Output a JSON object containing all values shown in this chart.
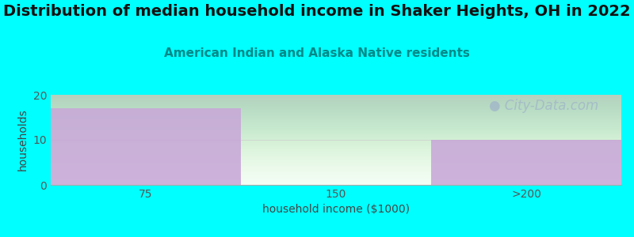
{
  "title": "Distribution of median household income in Shaker Heights, OH in 2022",
  "subtitle": "American Indian and Alaska Native residents",
  "xlabel": "household income ($1000)",
  "ylabel": "households",
  "categories": [
    "75",
    "150",
    ">200"
  ],
  "values": [
    17,
    0,
    10
  ],
  "bar_colors": [
    "#c8a8d8",
    "#d4ecc8",
    "#c8a8d8"
  ],
  "background_color": "#00ffff",
  "plot_bg_top": "#f0fff8",
  "plot_bg_bottom": "#e8f8f0",
  "ylim": [
    0,
    20
  ],
  "yticks": [
    0,
    10,
    20
  ],
  "title_fontsize": 14,
  "subtitle_fontsize": 11,
  "subtitle_color": "#008888",
  "tick_fontsize": 10,
  "axis_label_fontsize": 10,
  "watermark": "City-Data.com",
  "watermark_color": "#a0b4c8",
  "watermark_fontsize": 12
}
